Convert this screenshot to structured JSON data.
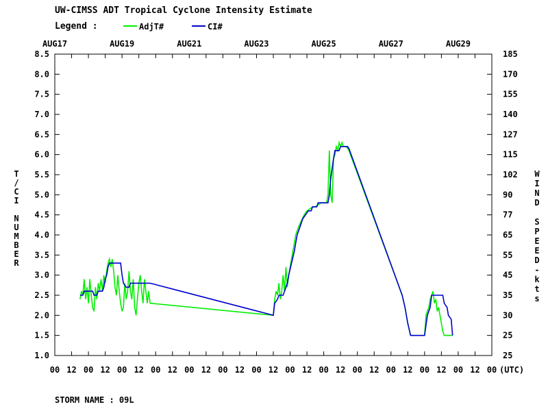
{
  "chart_data": {
    "type": "line",
    "title": "UW-CIMSS ADT Tropical Cyclone Intensity Estimate",
    "legend_label": "Legend :",
    "legend_position": "top-left",
    "ylabel_left": "T/CI NUMBER",
    "ylabel_right": "WIND SPEED-kts",
    "x_unit_label": "(UTC)",
    "storm_label": "STORM NAME : 09L",
    "xlim_hours": [
      0,
      312
    ],
    "ylim": [
      1.0,
      8.5
    ],
    "y_ticks": [
      "1.0",
      "1.5",
      "2.0",
      "2.5",
      "3.0",
      "3.5",
      "4.0",
      "4.5",
      "5.0",
      "5.5",
      "6.0",
      "6.5",
      "7.0",
      "7.5",
      "8.0",
      "8.5"
    ],
    "right_ticks": [
      "25",
      "25",
      "30",
      "35",
      "45",
      "55",
      "65",
      "77",
      "90",
      "102",
      "115",
      "127",
      "140",
      "155",
      "170",
      "185"
    ],
    "date_labels": [
      {
        "label": "AUG17",
        "hour": 0
      },
      {
        "label": "AUG19",
        "hour": 48
      },
      {
        "label": "AUG21",
        "hour": 96
      },
      {
        "label": "AUG23",
        "hour": 144
      },
      {
        "label": "AUG25",
        "hour": 192
      },
      {
        "label": "AUG27",
        "hour": 240
      },
      {
        "label": "AUG29",
        "hour": 288
      }
    ],
    "x_tick_labels": [
      "00",
      "12",
      "00",
      "12",
      "00",
      "12",
      "00",
      "12",
      "00",
      "12",
      "00",
      "12",
      "00",
      "12",
      "00",
      "12",
      "00",
      "12",
      "00",
      "12",
      "00",
      "12",
      "00",
      "12",
      "00",
      "12",
      "00"
    ],
    "grid": false,
    "series": [
      {
        "name": "AdjT#",
        "color": "#00ee00",
        "points": [
          [
            18,
            2.4
          ],
          [
            19,
            2.6
          ],
          [
            20,
            2.5
          ],
          [
            21,
            2.9
          ],
          [
            22,
            2.4
          ],
          [
            23,
            2.7
          ],
          [
            24,
            2.3
          ],
          [
            25,
            2.9
          ],
          [
            26,
            2.5
          ],
          [
            27,
            2.2
          ],
          [
            28,
            2.1
          ],
          [
            29,
            2.7
          ],
          [
            30,
            2.4
          ],
          [
            31,
            2.8
          ],
          [
            32,
            2.6
          ],
          [
            33,
            2.9
          ],
          [
            34,
            2.6
          ],
          [
            35,
            3.0
          ],
          [
            36,
            2.8
          ],
          [
            37,
            3.1
          ],
          [
            38,
            3.3
          ],
          [
            39,
            3.4
          ],
          [
            40,
            3.2
          ],
          [
            41,
            3.4
          ],
          [
            42,
            3.1
          ],
          [
            43,
            2.7
          ],
          [
            44,
            2.5
          ],
          [
            45,
            3.0
          ],
          [
            46,
            2.6
          ],
          [
            47,
            2.3
          ],
          [
            48,
            2.1
          ],
          [
            49,
            2.2
          ],
          [
            50,
            2.8
          ],
          [
            51,
            2.4
          ],
          [
            52,
            2.6
          ],
          [
            53,
            3.1
          ],
          [
            54,
            2.6
          ],
          [
            55,
            2.4
          ],
          [
            56,
            2.9
          ],
          [
            57,
            2.2
          ],
          [
            58,
            2.0
          ],
          [
            59,
            2.4
          ],
          [
            60,
            2.8
          ],
          [
            61,
            3.0
          ],
          [
            62,
            2.6
          ],
          [
            63,
            2.3
          ],
          [
            64,
            2.9
          ],
          [
            65,
            2.6
          ],
          [
            66,
            2.3
          ],
          [
            67,
            2.6
          ],
          [
            68,
            2.3
          ],
          [
            156,
            2.0
          ],
          [
            157,
            2.4
          ],
          [
            158,
            2.6
          ],
          [
            159,
            2.5
          ],
          [
            160,
            2.8
          ],
          [
            161,
            2.4
          ],
          [
            162,
            2.6
          ],
          [
            163,
            3.0
          ],
          [
            164,
            2.6
          ],
          [
            165,
            3.2
          ],
          [
            166,
            2.7
          ],
          [
            167,
            3.0
          ],
          [
            168,
            3.2
          ],
          [
            169,
            3.4
          ],
          [
            170,
            3.6
          ],
          [
            171,
            3.8
          ],
          [
            172,
            4.0
          ],
          [
            174,
            4.2
          ],
          [
            176,
            4.35
          ],
          [
            178,
            4.5
          ],
          [
            180,
            4.6
          ],
          [
            182,
            4.65
          ],
          [
            184,
            4.7
          ],
          [
            186,
            4.7
          ],
          [
            188,
            4.75
          ],
          [
            190,
            4.8
          ],
          [
            192,
            4.8
          ],
          [
            194,
            4.8
          ],
          [
            195,
            5.0
          ],
          [
            196,
            6.1
          ],
          [
            197,
            5.0
          ],
          [
            198,
            4.8
          ],
          [
            199,
            5.9
          ],
          [
            200,
            6.0
          ],
          [
            201,
            6.2
          ],
          [
            202,
            6.1
          ],
          [
            203,
            6.3
          ],
          [
            204,
            6.2
          ],
          [
            205,
            6.3
          ],
          [
            206,
            6.2
          ],
          [
            207,
            6.2
          ],
          [
            208,
            6.2
          ],
          [
            209,
            6.15
          ],
          [
            210,
            6.1
          ],
          [
            248,
            2.5
          ],
          [
            250,
            2.2
          ],
          [
            252,
            1.8
          ],
          [
            254,
            1.5
          ],
          [
            264,
            1.5
          ],
          [
            265,
            2.0
          ],
          [
            266,
            2.1
          ],
          [
            267,
            2.2
          ],
          [
            268,
            2.4
          ],
          [
            269,
            2.5
          ],
          [
            270,
            2.6
          ],
          [
            271,
            2.3
          ],
          [
            272,
            2.4
          ],
          [
            273,
            2.1
          ],
          [
            274,
            2.2
          ],
          [
            275,
            2.0
          ],
          [
            276,
            1.8
          ],
          [
            277,
            1.6
          ],
          [
            278,
            1.5
          ],
          [
            284,
            1.5
          ]
        ]
      },
      {
        "name": "CI#",
        "color": "#0000cc",
        "points": [
          [
            18,
            2.5
          ],
          [
            20,
            2.5
          ],
          [
            21,
            2.6
          ],
          [
            27,
            2.6
          ],
          [
            28,
            2.5
          ],
          [
            30,
            2.5
          ],
          [
            31,
            2.6
          ],
          [
            34,
            2.6
          ],
          [
            35,
            2.7
          ],
          [
            36,
            2.9
          ],
          [
            37,
            3.0
          ],
          [
            38,
            3.2
          ],
          [
            39,
            3.3
          ],
          [
            47,
            3.3
          ],
          [
            48,
            3.0
          ],
          [
            49,
            2.8
          ],
          [
            51,
            2.7
          ],
          [
            53,
            2.7
          ],
          [
            54,
            2.8
          ],
          [
            68,
            2.8
          ],
          [
            156,
            2.0
          ],
          [
            157,
            2.3
          ],
          [
            159,
            2.4
          ],
          [
            160,
            2.5
          ],
          [
            163,
            2.5
          ],
          [
            164,
            2.6
          ],
          [
            166,
            2.8
          ],
          [
            167,
            3.0
          ],
          [
            169,
            3.3
          ],
          [
            171,
            3.6
          ],
          [
            172,
            3.8
          ],
          [
            173,
            4.0
          ],
          [
            175,
            4.2
          ],
          [
            177,
            4.4
          ],
          [
            179,
            4.5
          ],
          [
            181,
            4.6
          ],
          [
            183,
            4.6
          ],
          [
            184,
            4.7
          ],
          [
            187,
            4.7
          ],
          [
            188,
            4.8
          ],
          [
            195,
            4.8
          ],
          [
            196,
            5.0
          ],
          [
            197,
            5.4
          ],
          [
            199,
            5.9
          ],
          [
            200,
            6.1
          ],
          [
            203,
            6.1
          ],
          [
            204,
            6.2
          ],
          [
            209,
            6.2
          ],
          [
            210,
            6.15
          ],
          [
            248,
            2.5
          ],
          [
            250,
            2.2
          ],
          [
            252,
            1.8
          ],
          [
            254,
            1.5
          ],
          [
            264,
            1.5
          ],
          [
            266,
            2.0
          ],
          [
            268,
            2.2
          ],
          [
            269,
            2.5
          ],
          [
            277,
            2.5
          ],
          [
            278,
            2.3
          ],
          [
            280,
            2.2
          ],
          [
            281,
            2.0
          ],
          [
            283,
            1.9
          ],
          [
            284,
            1.5
          ]
        ]
      }
    ]
  }
}
